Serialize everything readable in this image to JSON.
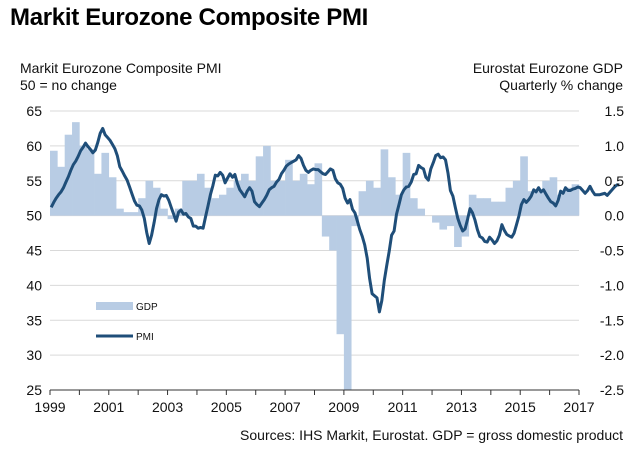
{
  "chart_data": {
    "type": "bar+line",
    "title": "Markit Eurozone Composite PMI",
    "left_axis_label": [
      "Markit Eurozone Composite PMI",
      "50 = no change"
    ],
    "right_axis_label": [
      "Eurostat Eurozone GDP",
      "Quarterly % change"
    ],
    "source": "Sources: IHS Markit, Eurostat. GDP = gross domestic product",
    "x_tick_labels": [
      "1999",
      "2001",
      "2003",
      "2005",
      "2007",
      "2009",
      "2011",
      "2013",
      "2015",
      "2017"
    ],
    "x_range": [
      1999,
      2017
    ],
    "left_axis": {
      "ticks": [
        25,
        30,
        35,
        40,
        45,
        50,
        55,
        60,
        65
      ],
      "range": [
        25,
        65
      ]
    },
    "right_axis": {
      "ticks": [
        "-2.5",
        "-2.0",
        "-1.5",
        "-1.0",
        "-0.5",
        "0.0",
        "0.5",
        "1.0",
        "1.5"
      ],
      "range": [
        -2.5,
        1.5
      ]
    },
    "grid": true,
    "legend": {
      "placement": "lower-left",
      "entries": [
        {
          "name": "GDP",
          "type": "bar",
          "color": "#b8cce4"
        },
        {
          "name": "PMI",
          "type": "line",
          "color": "#1f4e79"
        }
      ]
    },
    "series": [
      {
        "name": "GDP",
        "axis": "right",
        "frequency": "quarterly",
        "start": "1999Q1",
        "values": [
          0.93,
          0.7,
          1.16,
          1.34,
          1.0,
          0.95,
          0.6,
          0.9,
          0.55,
          0.1,
          0.05,
          0.05,
          0.25,
          0.5,
          0.4,
          0.1,
          -0.05,
          0.1,
          0.5,
          0.5,
          0.6,
          0.4,
          0.25,
          0.3,
          0.4,
          0.5,
          0.6,
          0.5,
          0.85,
          1.0,
          0.5,
          0.5,
          0.8,
          0.5,
          0.6,
          0.45,
          0.75,
          -0.3,
          -0.5,
          -1.7,
          -2.5,
          -0.15,
          0.35,
          0.5,
          0.4,
          0.95,
          0.55,
          0.3,
          0.9,
          0.25,
          0.1,
          0.0,
          -0.1,
          -0.2,
          -0.15,
          -0.45,
          -0.3,
          0.3,
          0.25,
          0.25,
          0.2,
          0.2,
          0.4,
          0.5,
          0.85,
          0.35,
          0.35,
          0.5,
          0.55,
          0.3,
          0.4,
          0.45
        ]
      },
      {
        "name": "PMI",
        "axis": "left",
        "frequency": "monthly",
        "start": "1999-01",
        "values": [
          51.2,
          51.9,
          52.5,
          53.0,
          53.4,
          54.0,
          54.8,
          55.6,
          56.5,
          57.3,
          57.8,
          58.5,
          59.3,
          59.8,
          60.4,
          59.9,
          59.5,
          59.0,
          59.4,
          60.5,
          61.8,
          62.5,
          61.6,
          61.2,
          60.8,
          60.2,
          59.6,
          58.6,
          57.0,
          56.4,
          55.7,
          55.1,
          54.1,
          53.1,
          52.1,
          51.5,
          51.4,
          50.8,
          49.6,
          47.6,
          46.0,
          47.2,
          49.0,
          51.0,
          52.3,
          53.0,
          52.8,
          52.9,
          52.2,
          51.2,
          50.2,
          49.2,
          50.5,
          50.8,
          50.2,
          50.3,
          49.8,
          49.6,
          48.5,
          48.5,
          48.2,
          48.3,
          48.2,
          49.8,
          51.4,
          53.0,
          54.3,
          55.8,
          55.7,
          56.2,
          55.8,
          54.7,
          55.4,
          56.0,
          55.5,
          55.9,
          54.6,
          53.7,
          53.2,
          52.7,
          53.5,
          54.0,
          53.5,
          52.0,
          51.6,
          51.3,
          51.8,
          52.3,
          52.9,
          53.7,
          54.0,
          54.2,
          54.8,
          55.2,
          56.0,
          56.5,
          57.1,
          57.4,
          57.6,
          57.8,
          58.0,
          58.6,
          58.2,
          57.2,
          56.5,
          56.2,
          56.5,
          56.7,
          56.6,
          56.6,
          56.3,
          56.0,
          55.9,
          56.3,
          56.7,
          56.5,
          55.3,
          54.7,
          54.5,
          53.9,
          52.5,
          51.8,
          52.3,
          50.9,
          50.4,
          49.2,
          48.0,
          47.0,
          45.8,
          43.9,
          41.0,
          38.8,
          38.5,
          38.2,
          36.2,
          37.8,
          40.7,
          42.8,
          44.9,
          47.2,
          47.8,
          50.2,
          51.6,
          53.0,
          53.7,
          54.1,
          54.2,
          54.8,
          55.9,
          56.0,
          57.2,
          56.9,
          56.7,
          55.5,
          55.1,
          56.7,
          57.6,
          58.6,
          58.8,
          58.3,
          58.4,
          58.0,
          56.1,
          53.6,
          52.8,
          51.2,
          49.6,
          48.6,
          47.8,
          48.1,
          49.5,
          51.0,
          50.4,
          49.4,
          48.0,
          47.0,
          46.8,
          46.3,
          46.2,
          46.9,
          46.5,
          46.0,
          46.4,
          47.2,
          48.7,
          47.9,
          47.3,
          47.1,
          46.9,
          47.5,
          48.7,
          50.0,
          51.6,
          52.3,
          51.9,
          52.3,
          52.8,
          53.7,
          53.4,
          54.0,
          53.4,
          53.7,
          53.1,
          52.5,
          52.0,
          51.8,
          51.4,
          52.2,
          53.5,
          53.2,
          54.0,
          53.6,
          53.6,
          53.8,
          53.9,
          54.1,
          54.0,
          53.6,
          53.2,
          53.6,
          54.2,
          53.5,
          53.0,
          53.0,
          53.0,
          53.1,
          53.2,
          52.9,
          53.3,
          53.7,
          54.1,
          54.4,
          54.4
        ]
      }
    ]
  }
}
